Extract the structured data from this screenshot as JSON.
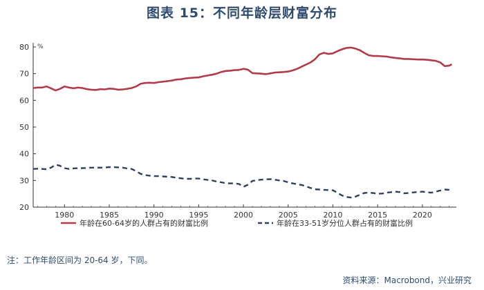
{
  "title": "图表 15：不同年龄层财富分布",
  "note": "注：工作年龄区间为 20-64 岁，下同。",
  "source": "资料来源：Macrobond，兴业研究",
  "chart_data": {
    "type": "line",
    "unit_label": "%",
    "ylim": [
      20,
      80
    ],
    "yticks": [
      20,
      30,
      40,
      50,
      60,
      70,
      80
    ],
    "xlim": [
      1976.5,
      2023.8
    ],
    "xticks": [
      1980,
      1985,
      1990,
      1995,
      2000,
      2005,
      2010,
      2015,
      2020
    ],
    "grid": false,
    "legend_position": "bottom",
    "series": [
      {
        "name": "年龄在60-64岁的人群占有的财富比例",
        "color": "#b23a48",
        "style": "solid",
        "x": [
          1976.5,
          1977,
          1977.5,
          1978,
          1978.5,
          1979,
          1979.5,
          1980,
          1980.5,
          1981,
          1981.5,
          1982,
          1982.5,
          1983,
          1983.5,
          1984,
          1984.5,
          1985,
          1985.5,
          1986,
          1986.5,
          1987,
          1987.5,
          1988,
          1988.5,
          1989,
          1989.5,
          1990,
          1990.5,
          1991,
          1991.5,
          1992,
          1992.5,
          1993,
          1993.5,
          1994,
          1994.5,
          1995,
          1995.5,
          1996,
          1996.5,
          1997,
          1997.5,
          1998,
          1998.5,
          1999,
          1999.5,
          2000,
          2000.5,
          2001,
          2001.5,
          2002,
          2002.5,
          2003,
          2003.5,
          2004,
          2004.5,
          2005,
          2005.5,
          2006,
          2006.5,
          2007,
          2007.5,
          2008,
          2008.5,
          2009,
          2009.5,
          2010,
          2010.5,
          2011,
          2011.5,
          2012,
          2012.5,
          2013,
          2013.5,
          2014,
          2014.5,
          2015,
          2015.5,
          2016,
          2016.5,
          2017,
          2017.5,
          2018,
          2018.5,
          2019,
          2019.5,
          2020,
          2020.5,
          2021,
          2021.5,
          2022,
          2022.5,
          2023,
          2023.3
        ],
        "y": [
          64.6,
          64.8,
          64.8,
          65.2,
          64.5,
          63.7,
          64.3,
          65.2,
          64.8,
          64.5,
          64.8,
          64.6,
          64.2,
          64.0,
          63.9,
          64.2,
          64.1,
          64.4,
          64.3,
          64.0,
          64.1,
          64.3,
          64.6,
          65.2,
          66.2,
          66.5,
          66.6,
          66.5,
          66.8,
          67.0,
          67.2,
          67.4,
          67.8,
          67.9,
          68.2,
          68.4,
          68.5,
          68.6,
          69.0,
          69.3,
          69.6,
          70.0,
          70.6,
          71.0,
          71.1,
          71.3,
          71.4,
          71.8,
          71.5,
          70.2,
          70.1,
          70.0,
          69.8,
          70.1,
          70.4,
          70.5,
          70.6,
          70.8,
          71.2,
          71.8,
          72.6,
          73.4,
          74.2,
          75.4,
          77.2,
          77.8,
          77.4,
          77.6,
          78.4,
          79.1,
          79.6,
          79.8,
          79.4,
          78.8,
          77.8,
          76.9,
          76.6,
          76.6,
          76.5,
          76.4,
          76.1,
          75.9,
          75.7,
          75.5,
          75.5,
          75.4,
          75.3,
          75.3,
          75.2,
          75.0,
          74.8,
          74.2,
          72.8,
          73.0,
          73.5
        ]
      },
      {
        "name": "年龄在33-51岁分位人群占有的财富比例",
        "color": "#2e3f5f",
        "style": "dashed",
        "x": [
          1976.5,
          1977,
          1977.5,
          1978,
          1978.5,
          1979,
          1979.5,
          1980,
          1980.5,
          1981,
          1981.5,
          1982,
          1982.5,
          1983,
          1983.5,
          1984,
          1984.5,
          1985,
          1985.5,
          1986,
          1986.5,
          1987,
          1987.5,
          1988,
          1988.5,
          1989,
          1989.5,
          1990,
          1990.5,
          1991,
          1991.5,
          1992,
          1992.5,
          1993,
          1993.5,
          1994,
          1994.5,
          1995,
          1995.5,
          1996,
          1996.5,
          1997,
          1997.5,
          1998,
          1998.5,
          1999,
          1999.5,
          2000,
          2000.5,
          2001,
          2001.5,
          2002,
          2002.5,
          2003,
          2003.5,
          2004,
          2004.5,
          2005,
          2005.5,
          2006,
          2006.5,
          2007,
          2007.5,
          2008,
          2008.5,
          2009,
          2009.5,
          2010,
          2010.5,
          2011,
          2011.5,
          2012,
          2012.5,
          2013,
          2013.5,
          2014,
          2014.5,
          2015,
          2015.5,
          2016,
          2016.5,
          2017,
          2017.5,
          2018,
          2018.5,
          2019,
          2019.5,
          2020,
          2020.5,
          2021,
          2021.5,
          2022,
          2022.5,
          2023,
          2023.3
        ],
        "y": [
          34.3,
          34.4,
          34.3,
          34.2,
          34.8,
          35.9,
          35.5,
          34.6,
          34.3,
          34.5,
          34.6,
          34.6,
          34.7,
          34.8,
          34.8,
          34.8,
          34.8,
          35.0,
          35.0,
          34.9,
          34.8,
          34.5,
          34.3,
          33.5,
          32.5,
          32.0,
          31.8,
          31.6,
          31.6,
          31.5,
          31.4,
          31.3,
          31.0,
          30.8,
          30.6,
          30.6,
          30.7,
          30.7,
          30.4,
          30.2,
          30.0,
          29.6,
          29.3,
          29.0,
          28.9,
          28.9,
          28.7,
          27.6,
          28.4,
          29.8,
          30.1,
          30.3,
          30.4,
          30.5,
          30.3,
          30.0,
          29.8,
          29.3,
          28.9,
          28.6,
          28.3,
          27.8,
          27.2,
          26.7,
          26.6,
          26.5,
          26.4,
          26.3,
          25.4,
          24.4,
          23.8,
          23.6,
          23.9,
          24.6,
          25.3,
          25.4,
          25.3,
          25.0,
          25.1,
          25.4,
          25.6,
          25.8,
          25.6,
          25.2,
          25.3,
          25.5,
          25.7,
          25.8,
          25.6,
          25.4,
          25.8,
          26.2,
          26.6,
          26.5,
          26.3
        ]
      }
    ]
  }
}
